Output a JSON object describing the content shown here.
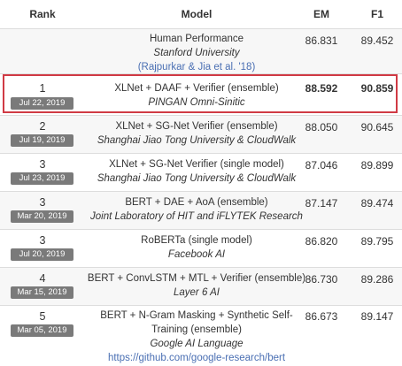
{
  "headers": {
    "rank": "Rank",
    "model": "Model",
    "em": "EM",
    "f1": "F1"
  },
  "human": {
    "name": "Human Performance",
    "institution": "Stanford University",
    "citation": "(Rajpurkar & Jia et al. '18)",
    "em": "86.831",
    "f1": "89.452"
  },
  "rows": [
    {
      "rank": "1",
      "date": "Jul 22, 2019",
      "name": "XLNet + DAAF + Verifier (ensemble)",
      "institution": "PINGAN Omni-Sinitic",
      "em": "88.592",
      "f1": "90.859"
    },
    {
      "rank": "2",
      "date": "Jul 19, 2019",
      "name": "XLNet + SG-Net Verifier (ensemble)",
      "institution": "Shanghai Jiao Tong University & CloudWalk",
      "em": "88.050",
      "f1": "90.645"
    },
    {
      "rank": "3",
      "date": "Jul 23, 2019",
      "name": "XLNet + SG-Net Verifier (single model)",
      "institution": "Shanghai Jiao Tong University & CloudWalk",
      "em": "87.046",
      "f1": "89.899"
    },
    {
      "rank": "3",
      "date": "Mar 20, 2019",
      "name": "BERT + DAE + AoA (ensemble)",
      "institution": "Joint Laboratory of HIT and iFLYTEK Research",
      "em": "87.147",
      "f1": "89.474"
    },
    {
      "rank": "3",
      "date": "Jul 20, 2019",
      "name": "RoBERTa (single model)",
      "institution": "Facebook AI",
      "em": "86.820",
      "f1": "89.795"
    },
    {
      "rank": "4",
      "date": "Mar 15, 2019",
      "name": "BERT + ConvLSTM + MTL + Verifier (ensemble)",
      "institution": "Layer 6 AI",
      "em": "86.730",
      "f1": "89.286"
    },
    {
      "rank": "5",
      "date": "Mar 05, 2019",
      "name_line1": "BERT + N-Gram Masking + Synthetic Self-",
      "name_line2": "Training (ensemble)",
      "institution": "Google AI Language",
      "link": "https://github.com/google-research/bert",
      "em": "86.673",
      "f1": "89.147"
    }
  ],
  "colors": {
    "highlight_border": "#d03a44",
    "date_badge": "#7a7a7a",
    "link": "#4a6fb3",
    "alt_row": "#f7f7f7"
  }
}
